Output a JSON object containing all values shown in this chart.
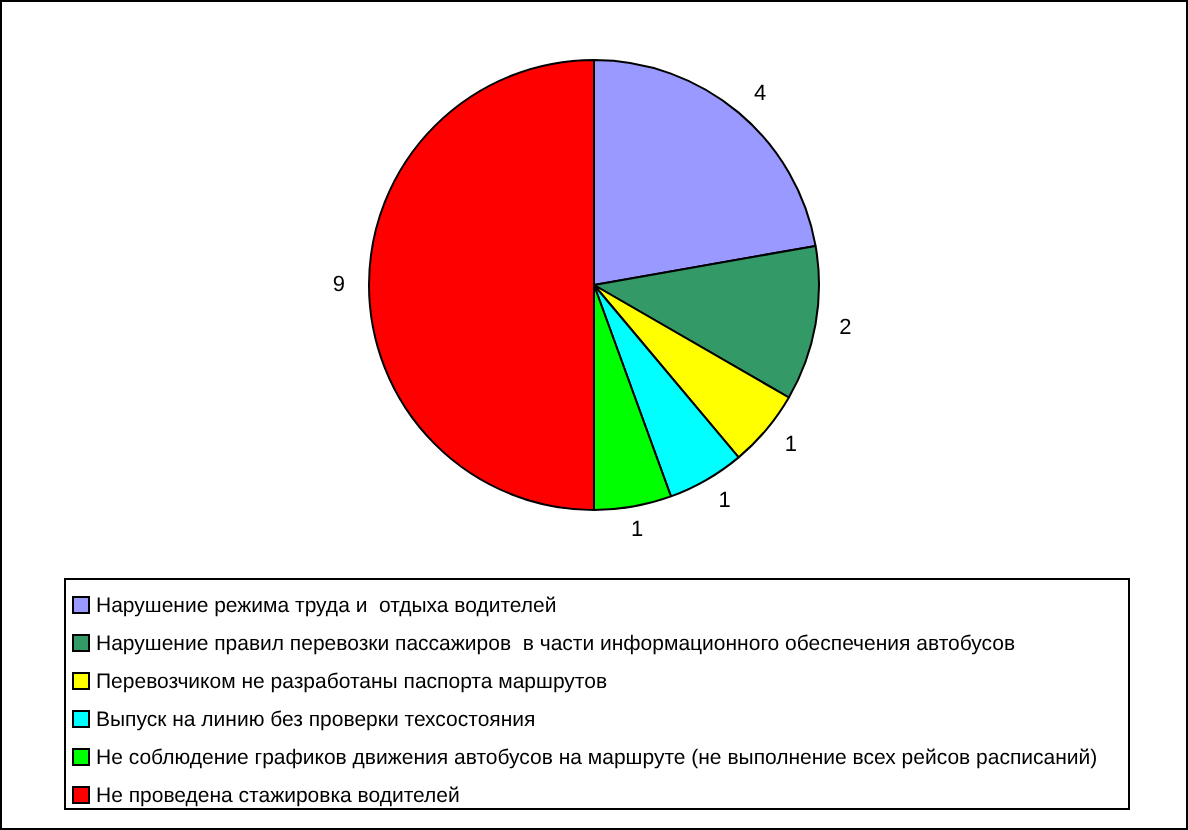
{
  "chart_data": {
    "type": "pie",
    "categories": [
      "Нарушение режима труда и  отдыха водителей",
      "Нарушение правил перевозки пассажиров  в части информационного обеспечения автобусов",
      "Перевозчиком не разработаны паспорта маршрутов",
      "Выпуск на линию без проверки техсостояния",
      "Не соблюдение графиков движения автобусов на маршруте (не выполнение всех рейсов расписаний)",
      "Не проведена стажировка водителей"
    ],
    "values": [
      4,
      2,
      1,
      1,
      1,
      9
    ],
    "colors": [
      "#9999ff",
      "#339966",
      "#ffff00",
      "#00ffff",
      "#00ff00",
      "#ff0000"
    ],
    "data_labels": true,
    "legend": "bottom"
  }
}
